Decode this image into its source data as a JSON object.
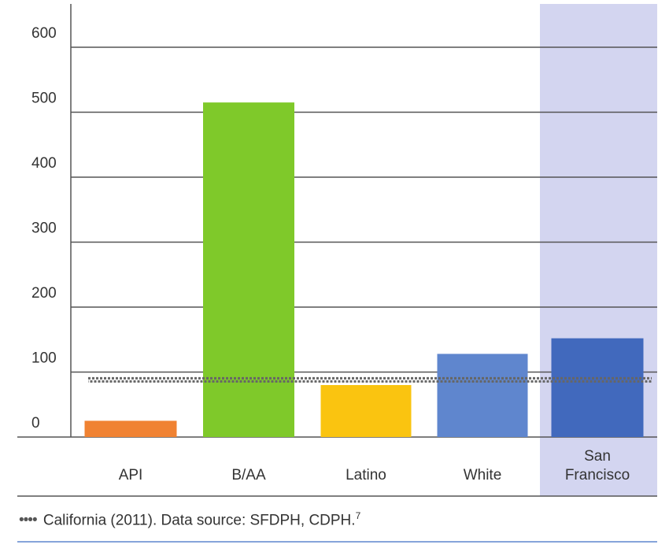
{
  "chart_data": {
    "type": "bar",
    "categories": [
      "API",
      "B/AA",
      "Latino",
      "White",
      "San Francisco"
    ],
    "category_lines": [
      [
        "API"
      ],
      [
        "B/AA"
      ],
      [
        "Latino"
      ],
      [
        "White"
      ],
      [
        "San",
        "Francisco"
      ]
    ],
    "values": [
      25,
      515,
      80,
      128,
      152
    ],
    "colors": [
      "#F08232",
      "#7FC92A",
      "#FAC410",
      "#5F86CE",
      "#4169BD"
    ],
    "reference_line": {
      "label": "California (2011)",
      "value": 88,
      "style": "dotted"
    },
    "highlight_category": "San Francisco",
    "highlight_color": "#D3D5F0",
    "ylim": [
      0,
      600
    ],
    "yticks": [
      0,
      100,
      200,
      300,
      400,
      500,
      600
    ],
    "grid": true,
    "title": "",
    "xlabel": "",
    "ylabel": ""
  },
  "footnote": {
    "marker": "•••• ",
    "text": "California (2011). Data source: SFDPH, CDPH.",
    "superscript": "7"
  }
}
